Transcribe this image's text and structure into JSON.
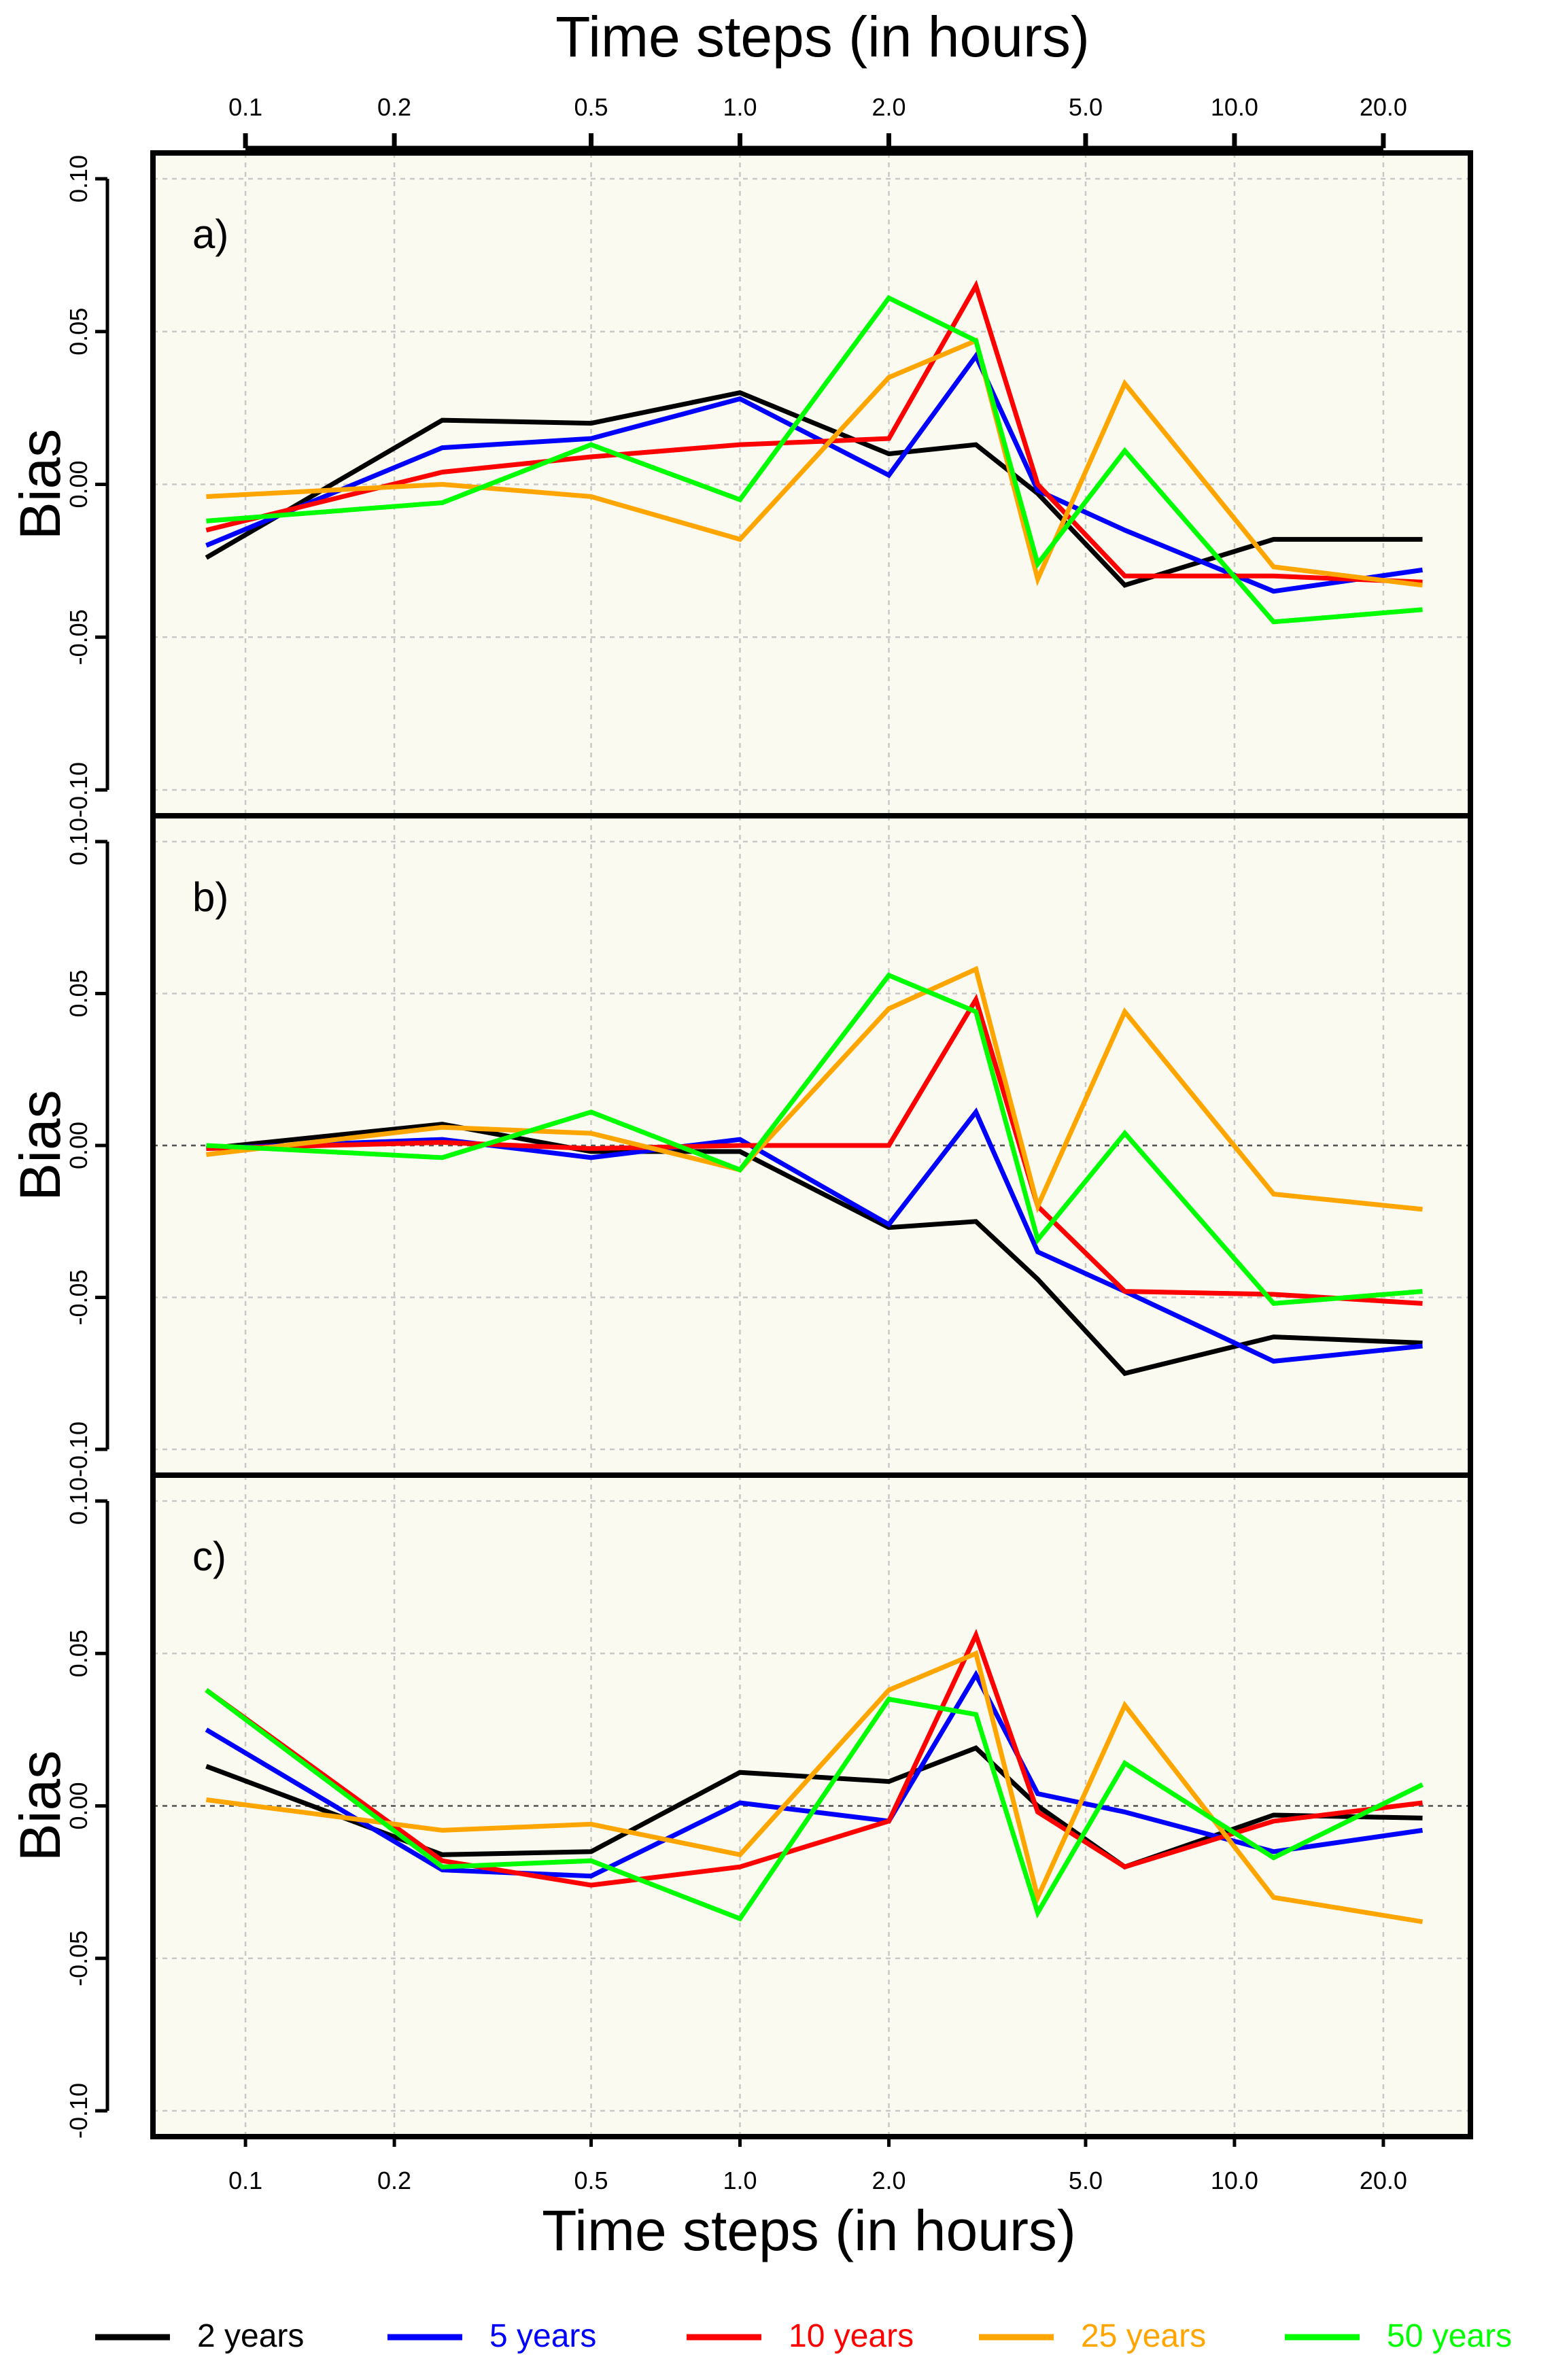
{
  "chart_data": {
    "type": "line",
    "x_scale": "log",
    "x_ticks": [
      0.1,
      0.2,
      0.5,
      1.0,
      2.0,
      5.0,
      10.0,
      20.0
    ],
    "x_tick_labels": [
      "0.1",
      "0.2",
      "0.5",
      "1.0",
      "2.0",
      "5.0",
      "10.0",
      "20.0"
    ],
    "x": [
      0.0833,
      0.25,
      0.5,
      1.0,
      2.0,
      3.0,
      4.0,
      6.0,
      12.0,
      24.0
    ],
    "xlim": [
      0.065,
      30
    ],
    "ylim": [
      -0.1,
      0.1
    ],
    "y_ticks": [
      -0.1,
      -0.05,
      0.0,
      0.05,
      0.1
    ],
    "y_tick_labels": [
      "-0.10",
      "-0.05",
      "0.00",
      "0.05",
      "0.10"
    ],
    "top_xlabel": "Time steps (in hours)",
    "bottom_xlabel": "Time steps (in hours)",
    "ylabel": "Bias",
    "grid": true,
    "legend": {
      "position": "bottom",
      "entries": [
        {
          "name": "2 years",
          "color": "#000000"
        },
        {
          "name": "5 years",
          "color": "#0000ff"
        },
        {
          "name": "10 years",
          "color": "#ff0000"
        },
        {
          "name": "25 years",
          "color": "#ffa500"
        },
        {
          "name": "50 years",
          "color": "#00ff00"
        }
      ]
    },
    "panels": [
      {
        "label": "a)",
        "zero_line": false,
        "series": [
          {
            "name": "2 years",
            "values": [
              -0.024,
              0.021,
              0.02,
              0.03,
              0.01,
              0.013,
              -0.003,
              -0.033,
              -0.018,
              -0.018
            ]
          },
          {
            "name": "5 years",
            "values": [
              -0.02,
              0.012,
              0.015,
              0.028,
              0.003,
              0.042,
              -0.002,
              -0.015,
              -0.035,
              -0.028
            ]
          },
          {
            "name": "10 years",
            "values": [
              -0.015,
              0.004,
              0.009,
              0.013,
              0.015,
              0.065,
              0.0,
              -0.03,
              -0.03,
              -0.032
            ]
          },
          {
            "name": "25 years",
            "values": [
              -0.004,
              0.0,
              -0.004,
              -0.018,
              0.035,
              0.047,
              -0.031,
              0.033,
              -0.027,
              -0.033
            ]
          },
          {
            "name": "50 years",
            "values": [
              -0.012,
              -0.006,
              0.013,
              -0.005,
              0.061,
              0.047,
              -0.026,
              0.011,
              -0.045,
              -0.041
            ]
          }
        ]
      },
      {
        "label": "b)",
        "zero_line": true,
        "series": [
          {
            "name": "2 years",
            "values": [
              -0.001,
              0.007,
              -0.002,
              -0.002,
              -0.027,
              -0.025,
              -0.044,
              -0.075,
              -0.063,
              -0.065
            ]
          },
          {
            "name": "5 years",
            "values": [
              -0.001,
              0.002,
              -0.004,
              0.002,
              -0.026,
              0.011,
              -0.035,
              -0.048,
              -0.071,
              -0.066
            ]
          },
          {
            "name": "10 years",
            "values": [
              -0.001,
              0.001,
              -0.001,
              0.0,
              0.0,
              0.048,
              -0.02,
              -0.048,
              -0.049,
              -0.052
            ]
          },
          {
            "name": "25 years",
            "values": [
              -0.003,
              0.006,
              0.004,
              -0.008,
              0.045,
              0.058,
              -0.02,
              0.044,
              -0.016,
              -0.021
            ]
          },
          {
            "name": "50 years",
            "values": [
              0.0,
              -0.004,
              0.011,
              -0.008,
              0.056,
              0.044,
              -0.031,
              0.004,
              -0.052,
              -0.048
            ]
          }
        ]
      },
      {
        "label": "c)",
        "zero_line": true,
        "series": [
          {
            "name": "2 years",
            "values": [
              0.013,
              -0.016,
              -0.015,
              0.011,
              0.008,
              0.019,
              0.0,
              -0.02,
              -0.003,
              -0.004
            ]
          },
          {
            "name": "5 years",
            "values": [
              0.025,
              -0.021,
              -0.023,
              0.001,
              -0.005,
              0.043,
              0.004,
              -0.002,
              -0.015,
              -0.008
            ]
          },
          {
            "name": "10 years",
            "values": [
              0.038,
              -0.018,
              -0.026,
              -0.02,
              -0.005,
              0.056,
              -0.002,
              -0.02,
              -0.005,
              0.001
            ]
          },
          {
            "name": "25 years",
            "values": [
              0.002,
              -0.008,
              -0.006,
              -0.016,
              0.038,
              0.05,
              -0.03,
              0.033,
              -0.03,
              -0.038
            ]
          },
          {
            "name": "50 years",
            "values": [
              0.038,
              -0.02,
              -0.018,
              -0.037,
              0.035,
              0.03,
              -0.035,
              0.014,
              -0.017,
              0.007
            ]
          }
        ]
      }
    ]
  }
}
